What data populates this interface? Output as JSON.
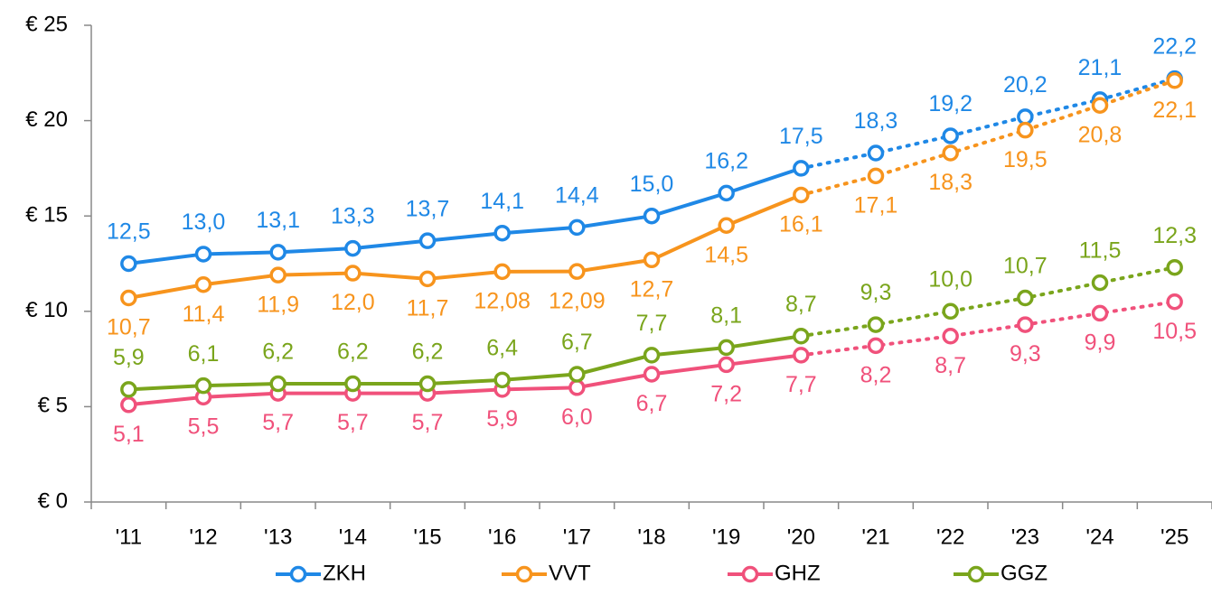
{
  "chart_data": {
    "type": "line",
    "categories": [
      "'11",
      "'12",
      "'13",
      "'14",
      "'15",
      "'16",
      "'17",
      "'18",
      "'19",
      "'20",
      "'21",
      "'22",
      "'23",
      "'24",
      "'25"
    ],
    "ylim": [
      0,
      25
    ],
    "yticks": [
      {
        "value": 0,
        "label": "€ 0"
      },
      {
        "value": 5,
        "label": "€ 5"
      },
      {
        "value": 10,
        "label": "€ 10"
      },
      {
        "value": 15,
        "label": "€ 15"
      },
      {
        "value": 20,
        "label": "€ 20"
      },
      {
        "value": 25,
        "label": "€ 25"
      }
    ],
    "dotted_after": 9,
    "legend": "bottom",
    "series": [
      {
        "name": "ZKH",
        "color": "#1f88e6",
        "label_side": "above",
        "values": [
          12.5,
          13.0,
          13.1,
          13.3,
          13.7,
          14.1,
          14.4,
          15.0,
          16.2,
          17.5,
          18.3,
          19.2,
          20.2,
          21.1,
          22.2
        ],
        "value_labels": [
          "12,5",
          "13,0",
          "13,1",
          "13,3",
          "13,7",
          "14,1",
          "14,4",
          "15,0",
          "16,2",
          "17,5",
          "18,3",
          "19,2",
          "20,2",
          "21,1",
          "22,2"
        ]
      },
      {
        "name": "VVT",
        "color": "#f7941d",
        "label_side": "below",
        "values": [
          10.7,
          11.4,
          11.9,
          12.0,
          11.7,
          12.08,
          12.09,
          12.7,
          14.5,
          16.1,
          17.1,
          18.3,
          19.5,
          20.8,
          22.1
        ],
        "value_labels": [
          "10,7",
          "11,4",
          "11,9",
          "12,0",
          "11,7",
          "12,08",
          "12,09",
          "12,7",
          "14,5",
          "16,1",
          "17,1",
          "18,3",
          "19,5",
          "20,8",
          "22,1"
        ]
      },
      {
        "name": "GHZ",
        "color": "#f0517b",
        "label_side": "below",
        "values": [
          5.1,
          5.5,
          5.7,
          5.7,
          5.7,
          5.9,
          6.0,
          6.7,
          7.2,
          7.7,
          8.2,
          8.7,
          9.3,
          9.9,
          10.5
        ],
        "value_labels": [
          "5,1",
          "5,5",
          "5,7",
          "5,7",
          "5,7",
          "5,9",
          "6,0",
          "6,7",
          "7,2",
          "7,7",
          "8,2",
          "8,7",
          "9,3",
          "9,9",
          "10,5"
        ]
      },
      {
        "name": "GGZ",
        "color": "#7aa51c",
        "label_side": "above",
        "values": [
          5.9,
          6.1,
          6.2,
          6.2,
          6.2,
          6.4,
          6.7,
          7.7,
          8.1,
          8.7,
          9.3,
          10.0,
          10.7,
          11.5,
          12.3
        ],
        "value_labels": [
          "5,9",
          "6,1",
          "6,2",
          "6,2",
          "6,2",
          "6,4",
          "6,7",
          "7,7",
          "8,1",
          "8,7",
          "9,3",
          "10,0",
          "10,7",
          "11,5",
          "12,3"
        ]
      }
    ]
  }
}
